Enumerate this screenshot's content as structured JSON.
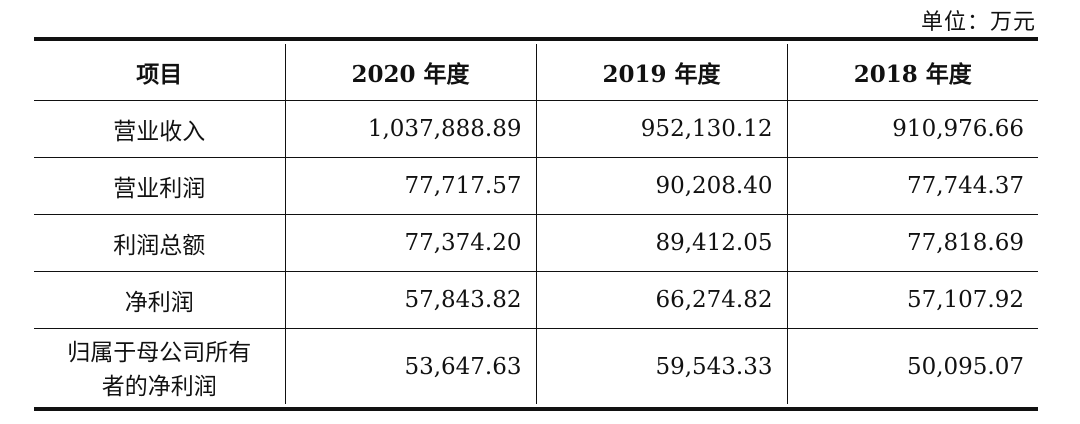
{
  "unit_label": "单位：万元",
  "table": {
    "headers": [
      "项目",
      "2020 年度",
      "2019 年度",
      "2018 年度"
    ],
    "rows": [
      {
        "label": "营业收入",
        "values": [
          "1,037,888.89",
          "952,130.12",
          "910,976.66"
        ]
      },
      {
        "label": "营业利润",
        "values": [
          "77,717.57",
          "90,208.40",
          "77,744.37"
        ]
      },
      {
        "label": "利润总额",
        "values": [
          "77,374.20",
          "89,412.05",
          "77,818.69"
        ]
      },
      {
        "label": "净利润",
        "values": [
          "57,843.82",
          "66,274.82",
          "57,107.92"
        ]
      },
      {
        "label_lines": [
          "归属于母公司所有",
          "者的净利润"
        ],
        "values": [
          "53,647.63",
          "59,543.33",
          "50,095.07"
        ]
      }
    ]
  }
}
